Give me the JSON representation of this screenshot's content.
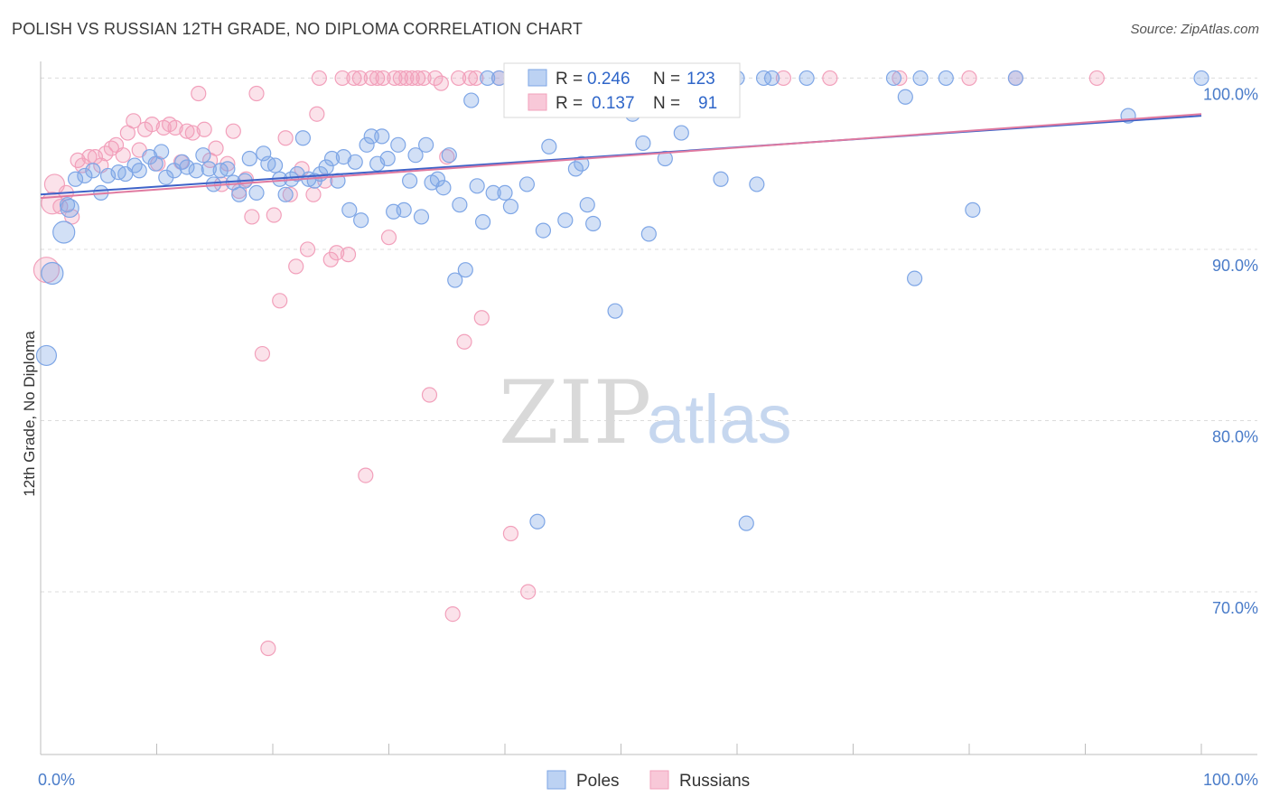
{
  "title": "POLISH VS RUSSIAN 12TH GRADE, NO DIPLOMA CORRELATION CHART",
  "source": "Source: ZipAtlas.com",
  "watermark": {
    "zip": "ZIP",
    "atlas": "atlas"
  },
  "colors": {
    "poles": "#7ea6e6",
    "poles_fill": "rgba(126,166,230,0.35)",
    "russians": "#f2a0bb",
    "russians_fill": "rgba(242,160,187,0.30)",
    "poles_line": "#3e63c8",
    "russians_line": "#e07aa0",
    "grid": "#dcdcdc"
  },
  "legend": {
    "poles": {
      "r_label": "R =",
      "r_value": "0.246",
      "n_label": "N =",
      "n_value": "123"
    },
    "russians": {
      "r_label": "R =",
      "r_value": "0.137",
      "n_label": "N =",
      "n_value": "91"
    }
  },
  "chart_data": {
    "type": "scatter",
    "title": "POLISH VS RUSSIAN 12TH GRADE, NO DIPLOMA CORRELATION CHART",
    "xlabel": "",
    "ylabel": "12th Grade, No Diploma",
    "xlim": [
      0,
      100
    ],
    "ylim": [
      60.5,
      101.5
    ],
    "x_tick_labels": [
      "0.0%",
      "100.0%"
    ],
    "y_ticks": [
      70,
      80,
      90,
      100
    ],
    "y_tick_labels": [
      "70.0%",
      "80.0%",
      "90.0%",
      "100.0%"
    ],
    "grid": true,
    "legend_position": "top-center",
    "series": [
      {
        "name": "Poles",
        "trend": [
          [
            0,
            93.2
          ],
          [
            100,
            97.8
          ]
        ],
        "points": [
          [
            0.5,
            83.8
          ],
          [
            1.0,
            88.6
          ],
          [
            2.0,
            91.0
          ],
          [
            2.5,
            92.4
          ],
          [
            2.3,
            92.6
          ],
          [
            3.0,
            94.1
          ],
          [
            3.8,
            94.3
          ],
          [
            4.5,
            94.6
          ],
          [
            5.2,
            93.3
          ],
          [
            5.8,
            94.3
          ],
          [
            6.7,
            94.5
          ],
          [
            7.3,
            94.4
          ],
          [
            8.1,
            94.9
          ],
          [
            8.5,
            94.6
          ],
          [
            9.4,
            95.4
          ],
          [
            9.9,
            95.0
          ],
          [
            10.4,
            95.7
          ],
          [
            10.8,
            94.2
          ],
          [
            11.5,
            94.6
          ],
          [
            12.2,
            95.1
          ],
          [
            12.6,
            94.8
          ],
          [
            13.4,
            94.6
          ],
          [
            14.0,
            95.5
          ],
          [
            14.5,
            94.7
          ],
          [
            14.9,
            93.8
          ],
          [
            15.5,
            94.6
          ],
          [
            16.1,
            94.7
          ],
          [
            16.6,
            93.9
          ],
          [
            17.1,
            93.2
          ],
          [
            17.6,
            94.0
          ],
          [
            18.0,
            95.3
          ],
          [
            18.6,
            93.3
          ],
          [
            19.2,
            95.6
          ],
          [
            19.6,
            95.0
          ],
          [
            20.2,
            94.9
          ],
          [
            20.6,
            94.1
          ],
          [
            21.1,
            93.2
          ],
          [
            21.6,
            94.1
          ],
          [
            22.1,
            94.4
          ],
          [
            22.6,
            96.5
          ],
          [
            23.1,
            94.1
          ],
          [
            23.6,
            94.0
          ],
          [
            24.1,
            94.4
          ],
          [
            24.6,
            94.8
          ],
          [
            25.1,
            95.3
          ],
          [
            25.6,
            94.0
          ],
          [
            26.1,
            95.4
          ],
          [
            26.6,
            92.3
          ],
          [
            27.1,
            95.1
          ],
          [
            27.6,
            91.7
          ],
          [
            28.1,
            96.1
          ],
          [
            28.5,
            96.6
          ],
          [
            29.0,
            95.0
          ],
          [
            29.4,
            96.6
          ],
          [
            29.9,
            95.3
          ],
          [
            30.4,
            92.2
          ],
          [
            30.8,
            96.1
          ],
          [
            31.3,
            92.3
          ],
          [
            31.8,
            94.0
          ],
          [
            32.3,
            95.5
          ],
          [
            32.8,
            91.9
          ],
          [
            33.2,
            96.1
          ],
          [
            33.7,
            93.9
          ],
          [
            34.2,
            94.1
          ],
          [
            34.7,
            93.6
          ],
          [
            35.2,
            95.5
          ],
          [
            35.7,
            88.2
          ],
          [
            36.1,
            92.6
          ],
          [
            36.6,
            88.8
          ],
          [
            37.1,
            98.7
          ],
          [
            37.6,
            93.7
          ],
          [
            38.1,
            91.6
          ],
          [
            38.5,
            100.0
          ],
          [
            39.0,
            93.3
          ],
          [
            39.5,
            100.0
          ],
          [
            40.0,
            93.3
          ],
          [
            40.5,
            92.5
          ],
          [
            41.0,
            98.6
          ],
          [
            41.4,
            100.0
          ],
          [
            41.9,
            93.8
          ],
          [
            42.4,
            100.0
          ],
          [
            42.8,
            74.1
          ],
          [
            43.3,
            91.1
          ],
          [
            43.8,
            96.0
          ],
          [
            44.2,
            100.0
          ],
          [
            44.7,
            98.7
          ],
          [
            45.2,
            91.7
          ],
          [
            45.6,
            100.0
          ],
          [
            46.1,
            94.7
          ],
          [
            46.6,
            95.0
          ],
          [
            47.1,
            92.6
          ],
          [
            47.6,
            91.5
          ],
          [
            48.1,
            100.0
          ],
          [
            48.6,
            100.0
          ],
          [
            49.1,
            100.0
          ],
          [
            49.5,
            86.4
          ],
          [
            50.0,
            100.0
          ],
          [
            50.5,
            100.0
          ],
          [
            51.0,
            97.9
          ],
          [
            51.5,
            100.0
          ],
          [
            51.9,
            96.2
          ],
          [
            52.4,
            90.9
          ],
          [
            52.9,
            100.0
          ],
          [
            53.4,
            100.0
          ],
          [
            53.8,
            95.3
          ],
          [
            54.3,
            100.0
          ],
          [
            54.8,
            100.0
          ],
          [
            55.2,
            96.8
          ],
          [
            55.7,
            100.0
          ],
          [
            56.2,
            100.0
          ],
          [
            56.7,
            100.0
          ],
          [
            57.2,
            100.0
          ],
          [
            58.0,
            100.0
          ],
          [
            58.6,
            94.1
          ],
          [
            60.0,
            100.0
          ],
          [
            60.8,
            74.0
          ],
          [
            61.7,
            93.8
          ],
          [
            62.3,
            100.0
          ],
          [
            63.0,
            100.0
          ],
          [
            66.0,
            100.0
          ],
          [
            73.5,
            100.0
          ],
          [
            74.5,
            98.9
          ],
          [
            75.3,
            88.3
          ],
          [
            75.8,
            100.0
          ],
          [
            78.0,
            100.0
          ],
          [
            80.3,
            92.3
          ],
          [
            84.0,
            100.0
          ],
          [
            93.7,
            97.8
          ],
          [
            100.0,
            100.0
          ]
        ]
      },
      {
        "name": "Russians",
        "trend": [
          [
            0,
            93.0
          ],
          [
            100,
            97.9
          ]
        ],
        "points": [
          [
            0.5,
            88.8
          ],
          [
            1.0,
            92.7
          ],
          [
            1.2,
            93.8
          ],
          [
            1.7,
            92.5
          ],
          [
            2.2,
            93.3
          ],
          [
            2.7,
            91.9
          ],
          [
            3.2,
            95.2
          ],
          [
            3.6,
            94.9
          ],
          [
            4.2,
            95.4
          ],
          [
            4.7,
            95.4
          ],
          [
            5.2,
            94.9
          ],
          [
            5.6,
            95.6
          ],
          [
            6.1,
            95.9
          ],
          [
            6.5,
            96.1
          ],
          [
            7.1,
            95.5
          ],
          [
            7.5,
            96.8
          ],
          [
            8.0,
            97.5
          ],
          [
            8.5,
            95.8
          ],
          [
            9.0,
            97.0
          ],
          [
            9.6,
            97.3
          ],
          [
            10.1,
            95.0
          ],
          [
            10.6,
            97.1
          ],
          [
            11.1,
            97.3
          ],
          [
            11.6,
            97.1
          ],
          [
            12.1,
            95.1
          ],
          [
            12.6,
            96.9
          ],
          [
            13.1,
            96.8
          ],
          [
            13.6,
            99.1
          ],
          [
            14.1,
            97.0
          ],
          [
            14.6,
            95.2
          ],
          [
            15.1,
            95.9
          ],
          [
            15.6,
            93.8
          ],
          [
            16.1,
            95.0
          ],
          [
            16.6,
            96.9
          ],
          [
            17.1,
            93.4
          ],
          [
            17.7,
            94.1
          ],
          [
            18.2,
            91.9
          ],
          [
            18.6,
            99.1
          ],
          [
            19.1,
            83.9
          ],
          [
            19.6,
            66.7
          ],
          [
            20.1,
            92.0
          ],
          [
            20.6,
            87.0
          ],
          [
            21.1,
            96.5
          ],
          [
            21.5,
            93.2
          ],
          [
            22.0,
            89.0
          ],
          [
            22.5,
            94.7
          ],
          [
            23.0,
            90.0
          ],
          [
            23.5,
            93.2
          ],
          [
            23.8,
            97.9
          ],
          [
            24.0,
            100.0
          ],
          [
            24.5,
            94.0
          ],
          [
            25.0,
            89.4
          ],
          [
            25.5,
            89.8
          ],
          [
            26.0,
            100.0
          ],
          [
            26.5,
            89.7
          ],
          [
            27.0,
            100.0
          ],
          [
            27.5,
            100.0
          ],
          [
            28.0,
            76.8
          ],
          [
            28.5,
            100.0
          ],
          [
            29.0,
            100.0
          ],
          [
            29.5,
            100.0
          ],
          [
            30.0,
            90.7
          ],
          [
            30.5,
            100.0
          ],
          [
            31.0,
            100.0
          ],
          [
            31.5,
            100.0
          ],
          [
            32.0,
            100.0
          ],
          [
            32.5,
            100.0
          ],
          [
            33.0,
            100.0
          ],
          [
            33.5,
            81.5
          ],
          [
            34.0,
            100.0
          ],
          [
            34.5,
            99.7
          ],
          [
            35.0,
            95.4
          ],
          [
            35.5,
            68.7
          ],
          [
            36.0,
            100.0
          ],
          [
            36.5,
            84.6
          ],
          [
            37.0,
            100.0
          ],
          [
            37.5,
            100.0
          ],
          [
            38.0,
            86.0
          ],
          [
            39.5,
            100.0
          ],
          [
            40.5,
            73.4
          ],
          [
            41.5,
            100.0
          ],
          [
            42.0,
            70.0
          ],
          [
            45.0,
            100.0
          ],
          [
            47.0,
            100.0
          ],
          [
            50.0,
            100.0
          ],
          [
            52.0,
            100.0
          ],
          [
            56.0,
            100.0
          ],
          [
            64.0,
            100.0
          ],
          [
            68.0,
            100.0
          ],
          [
            74.0,
            100.0
          ],
          [
            80.0,
            100.0
          ],
          [
            84.0,
            100.0
          ],
          [
            91.0,
            100.0
          ]
        ]
      }
    ]
  },
  "bottom_legend": {
    "poles": "Poles",
    "russians": "Russians"
  }
}
